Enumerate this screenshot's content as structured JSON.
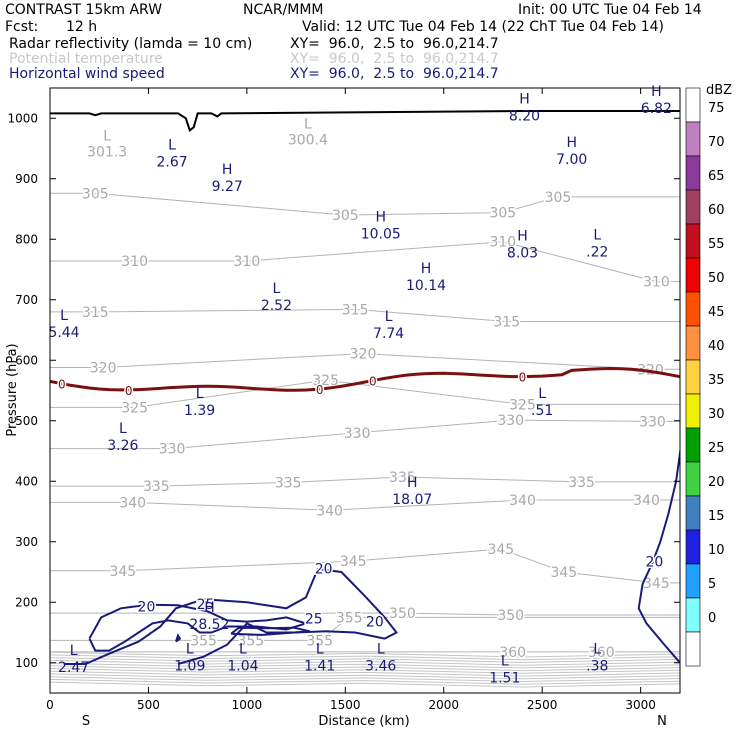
{
  "header": {
    "title": "CONTRAST 15km ARW",
    "source": "NCAR/MMM",
    "init": "Init: 00 UTC Tue 04 Feb 14",
    "fcst_label": "Fcst:",
    "fcst_value": "12 h",
    "valid": "Valid: 12 UTC Tue 04 Feb 14 (22 ChT Tue 04 Feb 14)",
    "fields": [
      {
        "name": "Radar reflectivity (lamda = 10 cm)",
        "xy": "XY=  96.0,  2.5 to  96.0,214.7",
        "color": "#000000"
      },
      {
        "name": "Potential temperature",
        "xy": "XY=  96.0,  2.5 to  96.0,214.7",
        "color": "#c8c8c8"
      },
      {
        "name": "Horizontal wind speed",
        "xy": "XY=  96.0,  2.5 to  96.0,214.7",
        "color": "#1a1a7a"
      }
    ]
  },
  "chart_data": {
    "type": "contour",
    "xlabel": "Distance (km)",
    "ylabel": "Pressure (hPa)",
    "xlim": [
      0,
      3200
    ],
    "ylim": [
      1050,
      50
    ],
    "x_ticks": [
      0,
      500,
      1000,
      1500,
      2000,
      2500,
      3000
    ],
    "y_ticks": [
      100,
      200,
      300,
      400,
      500,
      600,
      700,
      800,
      900,
      1000
    ],
    "x_end_labels": {
      "left": "S",
      "right": "N"
    },
    "theta_labels": [
      {
        "v": "360",
        "x": 2350,
        "p": 118
      },
      {
        "v": "360",
        "x": 2800,
        "p": 118
      },
      {
        "v": "355",
        "x": 780,
        "p": 137
      },
      {
        "v": "355",
        "x": 1020,
        "p": 137
      },
      {
        "v": "355",
        "x": 1370,
        "p": 137
      },
      {
        "v": "355",
        "x": 1520,
        "p": 175
      },
      {
        "v": "350",
        "x": 1790,
        "p": 182
      },
      {
        "v": "350",
        "x": 2340,
        "p": 179
      },
      {
        "v": "345",
        "x": 370,
        "p": 252
      },
      {
        "v": "345",
        "x": 1540,
        "p": 268
      },
      {
        "v": "345",
        "x": 2290,
        "p": 288
      },
      {
        "v": "345",
        "x": 2610,
        "p": 250
      },
      {
        "v": "345",
        "x": 3080,
        "p": 232
      },
      {
        "v": "340",
        "x": 420,
        "p": 365
      },
      {
        "v": "340",
        "x": 1420,
        "p": 352
      },
      {
        "v": "340",
        "x": 2400,
        "p": 369
      },
      {
        "v": "340",
        "x": 3030,
        "p": 369
      },
      {
        "v": "335",
        "x": 540,
        "p": 392
      },
      {
        "v": "335",
        "x": 1210,
        "p": 398
      },
      {
        "v": "335",
        "x": 1790,
        "p": 407
      },
      {
        "v": "335",
        "x": 2700,
        "p": 399
      },
      {
        "v": "330",
        "x": 620,
        "p": 454
      },
      {
        "v": "330",
        "x": 1560,
        "p": 480
      },
      {
        "v": "330",
        "x": 2340,
        "p": 501
      },
      {
        "v": "330",
        "x": 3060,
        "p": 499
      },
      {
        "v": "325",
        "x": 430,
        "p": 522
      },
      {
        "v": "325",
        "x": 1400,
        "p": 567
      },
      {
        "v": "325",
        "x": 2400,
        "p": 527
      },
      {
        "v": "320",
        "x": 270,
        "p": 588
      },
      {
        "v": "320",
        "x": 1590,
        "p": 611
      },
      {
        "v": "320",
        "x": 3050,
        "p": 585
      },
      {
        "v": "315",
        "x": 230,
        "p": 680
      },
      {
        "v": "315",
        "x": 1550,
        "p": 684
      },
      {
        "v": "315",
        "x": 2320,
        "p": 664
      },
      {
        "v": "310",
        "x": 430,
        "p": 764
      },
      {
        "v": "310",
        "x": 1000,
        "p": 764
      },
      {
        "v": "310",
        "x": 2300,
        "p": 796
      },
      {
        "v": "310",
        "x": 3080,
        "p": 730
      },
      {
        "v": "305",
        "x": 230,
        "p": 876
      },
      {
        "v": "305",
        "x": 1500,
        "p": 840
      },
      {
        "v": "305",
        "x": 2300,
        "p": 844
      },
      {
        "v": "305",
        "x": 2580,
        "p": 870
      }
    ],
    "theta_extrema": [
      {
        "kind": "L",
        "v": "301.3",
        "x": 290,
        "p": 950
      },
      {
        "kind": "L",
        "v": "300.4",
        "x": 1310,
        "p": 970
      }
    ],
    "speed_labels": [
      {
        "v": "20",
        "x": 490,
        "p": 193
      },
      {
        "v": "25",
        "x": 790,
        "p": 197
      },
      {
        "v": "25",
        "x": 1340,
        "p": 173
      },
      {
        "v": "20",
        "x": 1650,
        "p": 168
      },
      {
        "v": "20",
        "x": 1390,
        "p": 256
      },
      {
        "v": "20",
        "x": 3070,
        "p": 267
      }
    ],
    "speed_extrema": [
      {
        "kind": "L",
        "v": "2.47",
        "x": 120,
        "p": 96
      },
      {
        "kind": "L",
        "v": "1.09",
        "x": 710,
        "p": 99
      },
      {
        "kind": "L",
        "v": "1.04",
        "x": 980,
        "p": 99
      },
      {
        "kind": "L",
        "v": "1.41",
        "x": 1370,
        "p": 99
      },
      {
        "kind": "L",
        "v": "3.46",
        "x": 1680,
        "p": 99
      },
      {
        "kind": "L",
        "v": "1.51",
        "x": 2310,
        "p": 79
      },
      {
        "kind": "L",
        "v": ".38",
        "x": 2780,
        "p": 99
      },
      {
        "kind": "H",
        "v": "28.52",
        "x": 810,
        "p": 167
      },
      {
        "kind": "H",
        "v": "18.07",
        "x": 1840,
        "p": 374
      },
      {
        "kind": "L",
        "v": "3.26",
        "x": 370,
        "p": 463
      },
      {
        "kind": "L",
        "v": "1.39",
        "x": 760,
        "p": 521
      },
      {
        "kind": "L",
        "v": ".51",
        "x": 2500,
        "p": 521
      },
      {
        "kind": "L",
        "v": "5.44",
        "x": -30,
        "p": 650
      },
      {
        "kind": "L",
        "v": "7.74",
        "x": 1720,
        "p": 648
      },
      {
        "kind": "L",
        "v": "2.52",
        "x": 1150,
        "p": 695
      },
      {
        "kind": "H",
        "v": "10.14",
        "x": 1910,
        "p": 728
      },
      {
        "kind": "H",
        "v": "8.03",
        "x": 2400,
        "p": 781
      },
      {
        "kind": "L",
        "v": ".22",
        "x": 2780,
        "p": 783
      },
      {
        "kind": "H",
        "v": "10.05",
        "x": 1680,
        "p": 813
      },
      {
        "kind": "H",
        "v": "9.27",
        "x": 900,
        "p": 891
      },
      {
        "kind": "L",
        "v": "2.67",
        "x": 620,
        "p": 932
      },
      {
        "kind": "H",
        "v": "7.00",
        "x": 2650,
        "p": 936
      },
      {
        "kind": "H",
        "v": "8.20",
        "x": 2410,
        "p": 1008
      },
      {
        "kind": "H",
        "v": "6.82",
        "x": 3080,
        "p": 1020
      }
    ],
    "freezing_level_label": "0",
    "colorbar": {
      "unit": "dBZ",
      "levels": [
        "75",
        "70",
        "65",
        "60",
        "55",
        "50",
        "45",
        "40",
        "35",
        "30",
        "25",
        "20",
        "15",
        "10",
        "5",
        "0"
      ],
      "colors": [
        "#ffffff",
        "#c080c0",
        "#8b3a9b",
        "#a04060",
        "#c01020",
        "#f00000",
        "#ff5000",
        "#ff9040",
        "#ffd040",
        "#f0f000",
        "#00a000",
        "#40d040",
        "#4080c0",
        "#2020e0",
        "#20a0ff",
        "#80ffff",
        "#ffffff"
      ]
    }
  }
}
